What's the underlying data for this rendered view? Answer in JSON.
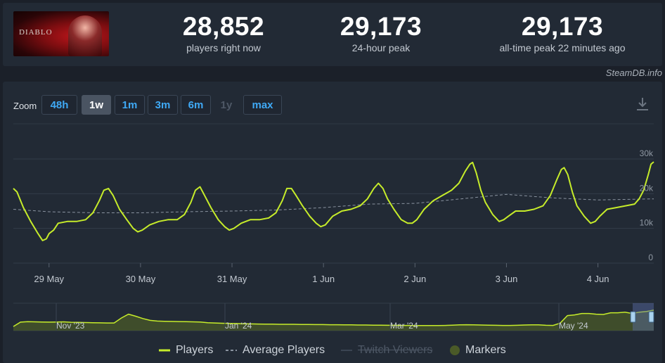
{
  "header": {
    "game_logo_text": "DIABLO",
    "stats": [
      {
        "value": "28,852",
        "label": "players right now"
      },
      {
        "value": "29,173",
        "label": "24-hour peak"
      },
      {
        "value": "29,173",
        "label": "all-time peak 22 minutes ago"
      }
    ]
  },
  "brand": "SteamDB.info",
  "zoom": {
    "label": "Zoom",
    "buttons": [
      {
        "label": "48h",
        "state": "normal"
      },
      {
        "label": "1w",
        "state": "active"
      },
      {
        "label": "1m",
        "state": "normal"
      },
      {
        "label": "3m",
        "state": "normal"
      },
      {
        "label": "6m",
        "state": "normal"
      },
      {
        "label": "1y",
        "state": "disabled"
      },
      {
        "label": "max",
        "state": "normal"
      }
    ]
  },
  "icons": {
    "download": "download-icon"
  },
  "colors": {
    "players": "#c6ec2a",
    "average": "#8a93a0",
    "background": "#1b2029",
    "panel": "#222a35",
    "link": "#3fa9f5"
  },
  "legend": [
    {
      "label": "Players",
      "style": "line",
      "enabled": true
    },
    {
      "label": "Average Players",
      "style": "dash",
      "enabled": true
    },
    {
      "label": "Twitch Viewers",
      "style": "line",
      "enabled": false
    },
    {
      "label": "Markers",
      "style": "dot",
      "enabled": true
    }
  ],
  "chart_data": [
    {
      "type": "line",
      "x_unit": "days since 28 May 2024 (hours / 24)",
      "x_ticks": [
        {
          "day": 1,
          "label": "29 May"
        },
        {
          "day": 2,
          "label": "30 May"
        },
        {
          "day": 3,
          "label": "31 May"
        },
        {
          "day": 4,
          "label": "1 Jun"
        },
        {
          "day": 5,
          "label": "2 Jun"
        },
        {
          "day": 6,
          "label": "3 Jun"
        },
        {
          "day": 7,
          "label": "4 Jun"
        }
      ],
      "y_ticks": [
        {
          "value": 0,
          "label": "0"
        },
        {
          "value": 10000,
          "label": "10k"
        },
        {
          "value": 20000,
          "label": "20k"
        },
        {
          "value": 30000,
          "label": "30k"
        }
      ],
      "xlim": [
        0.61,
        7.61
      ],
      "ylim": [
        0,
        30000
      ],
      "grid": true,
      "series": [
        {
          "name": "Players",
          "points": [
            [
              0.61,
              21500
            ],
            [
              0.65,
              20500
            ],
            [
              0.72,
              16000
            ],
            [
              0.8,
              12000
            ],
            [
              0.88,
              8500
            ],
            [
              0.93,
              6500
            ],
            [
              0.97,
              7000
            ],
            [
              1.0,
              8500
            ],
            [
              1.05,
              9500
            ],
            [
              1.1,
              11500
            ],
            [
              1.2,
              12000
            ],
            [
              1.3,
              12000
            ],
            [
              1.4,
              12500
            ],
            [
              1.48,
              14500
            ],
            [
              1.55,
              18000
            ],
            [
              1.6,
              21000
            ],
            [
              1.65,
              21500
            ],
            [
              1.7,
              19500
            ],
            [
              1.77,
              15500
            ],
            [
              1.85,
              12500
            ],
            [
              1.92,
              10000
            ],
            [
              1.97,
              9000
            ],
            [
              2.02,
              9500
            ],
            [
              2.1,
              11000
            ],
            [
              2.2,
              12000
            ],
            [
              2.3,
              12500
            ],
            [
              2.4,
              12500
            ],
            [
              2.48,
              14000
            ],
            [
              2.55,
              17500
            ],
            [
              2.6,
              21000
            ],
            [
              2.65,
              22000
            ],
            [
              2.7,
              19500
            ],
            [
              2.77,
              16000
            ],
            [
              2.85,
              12500
            ],
            [
              2.92,
              10500
            ],
            [
              2.97,
              9500
            ],
            [
              3.02,
              10000
            ],
            [
              3.1,
              11500
            ],
            [
              3.2,
              12500
            ],
            [
              3.3,
              12500
            ],
            [
              3.4,
              13000
            ],
            [
              3.48,
              14500
            ],
            [
              3.55,
              18000
            ],
            [
              3.6,
              21500
            ],
            [
              3.65,
              21500
            ],
            [
              3.7,
              19500
            ],
            [
              3.77,
              16500
            ],
            [
              3.85,
              13500
            ],
            [
              3.92,
              11500
            ],
            [
              3.97,
              10500
            ],
            [
              4.02,
              11000
            ],
            [
              4.1,
              13500
            ],
            [
              4.2,
              15000
            ],
            [
              4.3,
              15500
            ],
            [
              4.4,
              16500
            ],
            [
              4.48,
              18500
            ],
            [
              4.55,
              21500
            ],
            [
              4.6,
              23000
            ],
            [
              4.65,
              21500
            ],
            [
              4.7,
              18500
            ],
            [
              4.77,
              15500
            ],
            [
              4.85,
              12500
            ],
            [
              4.92,
              11500
            ],
            [
              4.97,
              11500
            ],
            [
              5.02,
              12500
            ],
            [
              5.1,
              15500
            ],
            [
              5.2,
              18000
            ],
            [
              5.3,
              19500
            ],
            [
              5.4,
              21000
            ],
            [
              5.48,
              23000
            ],
            [
              5.55,
              26500
            ],
            [
              5.6,
              28500
            ],
            [
              5.63,
              29000
            ],
            [
              5.67,
              26000
            ],
            [
              5.72,
              21000
            ],
            [
              5.77,
              17500
            ],
            [
              5.85,
              14000
            ],
            [
              5.92,
              12000
            ],
            [
              5.97,
              12500
            ],
            [
              6.02,
              13500
            ],
            [
              6.1,
              15000
            ],
            [
              6.2,
              15000
            ],
            [
              6.3,
              15500
            ],
            [
              6.4,
              16500
            ],
            [
              6.48,
              19500
            ],
            [
              6.55,
              24000
            ],
            [
              6.6,
              27000
            ],
            [
              6.63,
              27500
            ],
            [
              6.67,
              25500
            ],
            [
              6.72,
              20500
            ],
            [
              6.77,
              16500
            ],
            [
              6.85,
              13500
            ],
            [
              6.92,
              11500
            ],
            [
              6.97,
              12000
            ],
            [
              7.02,
              13500
            ],
            [
              7.1,
              15500
            ],
            [
              7.2,
              16000
            ],
            [
              7.3,
              16500
            ],
            [
              7.4,
              17000
            ],
            [
              7.45,
              18500
            ],
            [
              7.5,
              21000
            ],
            [
              7.55,
              25500
            ],
            [
              7.58,
              28500
            ],
            [
              7.61,
              29173
            ]
          ]
        },
        {
          "name": "Average Players",
          "points": [
            [
              0.61,
              15500
            ],
            [
              1.0,
              14800
            ],
            [
              1.5,
              14500
            ],
            [
              2.0,
              14500
            ],
            [
              2.5,
              14800
            ],
            [
              3.0,
              15000
            ],
            [
              3.5,
              15300
            ],
            [
              4.0,
              16000
            ],
            [
              4.5,
              17000
            ],
            [
              5.0,
              17200
            ],
            [
              5.5,
              18500
            ],
            [
              6.0,
              19800
            ],
            [
              6.5,
              18800
            ],
            [
              7.0,
              18200
            ],
            [
              7.61,
              18500
            ]
          ]
        }
      ]
    },
    {
      "type": "area",
      "role": "navigator overview",
      "x_labels": [
        "Nov '23",
        "Jan '24",
        "Mar '24",
        "May '24"
      ],
      "values": [
        3000,
        6200,
        6500,
        6400,
        6300,
        6200,
        6300,
        6400,
        6100,
        6000,
        5900,
        5800,
        5700,
        5600,
        5600,
        9200,
        12000,
        10500,
        8800,
        7500,
        7000,
        6800,
        6700,
        6600,
        6500,
        6400,
        6300,
        5800,
        5600,
        5400,
        5300,
        5200,
        5000,
        4900,
        4800,
        4700,
        4700,
        4600,
        4600,
        4600,
        4500,
        4500,
        4400,
        4400,
        4300,
        4300,
        4200,
        4200,
        4100,
        4100,
        4000,
        4000,
        3900,
        3900,
        3800,
        3800,
        3700,
        3700,
        3700,
        3700,
        3800,
        4000,
        4200,
        4300,
        4200,
        4100,
        4000,
        3900,
        3800,
        3800,
        3900,
        4100,
        4200,
        4200,
        3900,
        3800,
        5500,
        11000,
        11500,
        12500,
        12500,
        12000,
        11800,
        13000,
        13000,
        13500,
        12500,
        13500,
        14000,
        15000
      ],
      "selected_range": "1w"
    }
  ]
}
